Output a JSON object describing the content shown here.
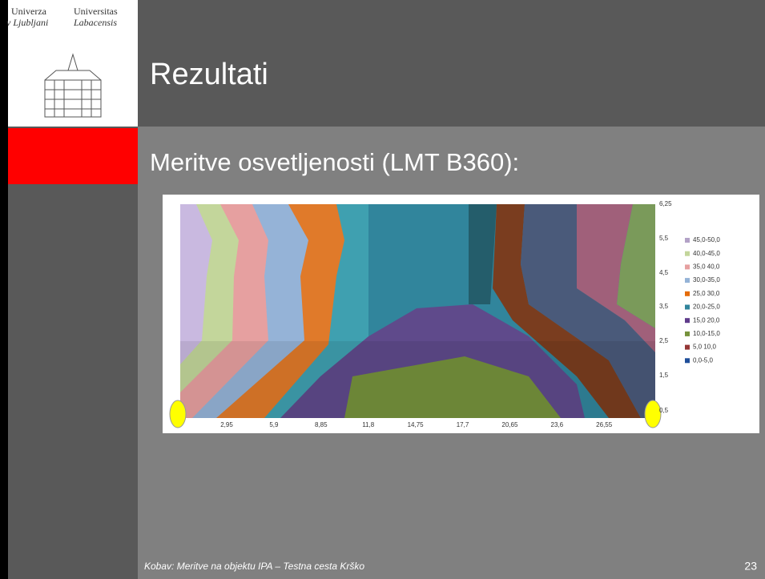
{
  "logo": {
    "left": [
      "Univerza",
      "v Ljubljani"
    ],
    "right": [
      "Universitas",
      "Labacensis"
    ]
  },
  "title": "Rezultati",
  "subtitle": "Meritve osvetljenosti (LMT B360):",
  "figure": {
    "x_ticks": [
      "2,95",
      "5,9",
      "8,85",
      "11,8",
      "14,75",
      "17,7",
      "20,65",
      "23,6",
      "26,55"
    ],
    "y_ticks": [
      "6,25",
      "5,5",
      "4,5",
      "3,5",
      "2,5",
      "1,5",
      "0,5"
    ],
    "legend": [
      {
        "label": "45,0-50,0",
        "color": "#b3a2c7"
      },
      {
        "label": "40,0-45,0",
        "color": "#c3d69b"
      },
      {
        "label": "35,0 40,0",
        "color": "#e6a0a0"
      },
      {
        "label": "30,0-35,0",
        "color": "#95b3d7"
      },
      {
        "label": "25,0 30,0",
        "color": "#e46c0a"
      },
      {
        "label": "20,0-25,0",
        "color": "#31859c"
      },
      {
        "label": "15,0 20,0",
        "color": "#5f3c8b"
      },
      {
        "label": "10,0-15,0",
        "color": "#76923c"
      },
      {
        "label": "5,0 10,0",
        "color": "#953735"
      },
      {
        "label": "0,0-5,0",
        "color": "#1f4e99"
      }
    ]
  },
  "footer": "Kobav: Meritve na objektu IPA – Testna cesta Krško",
  "page_number": "23"
}
